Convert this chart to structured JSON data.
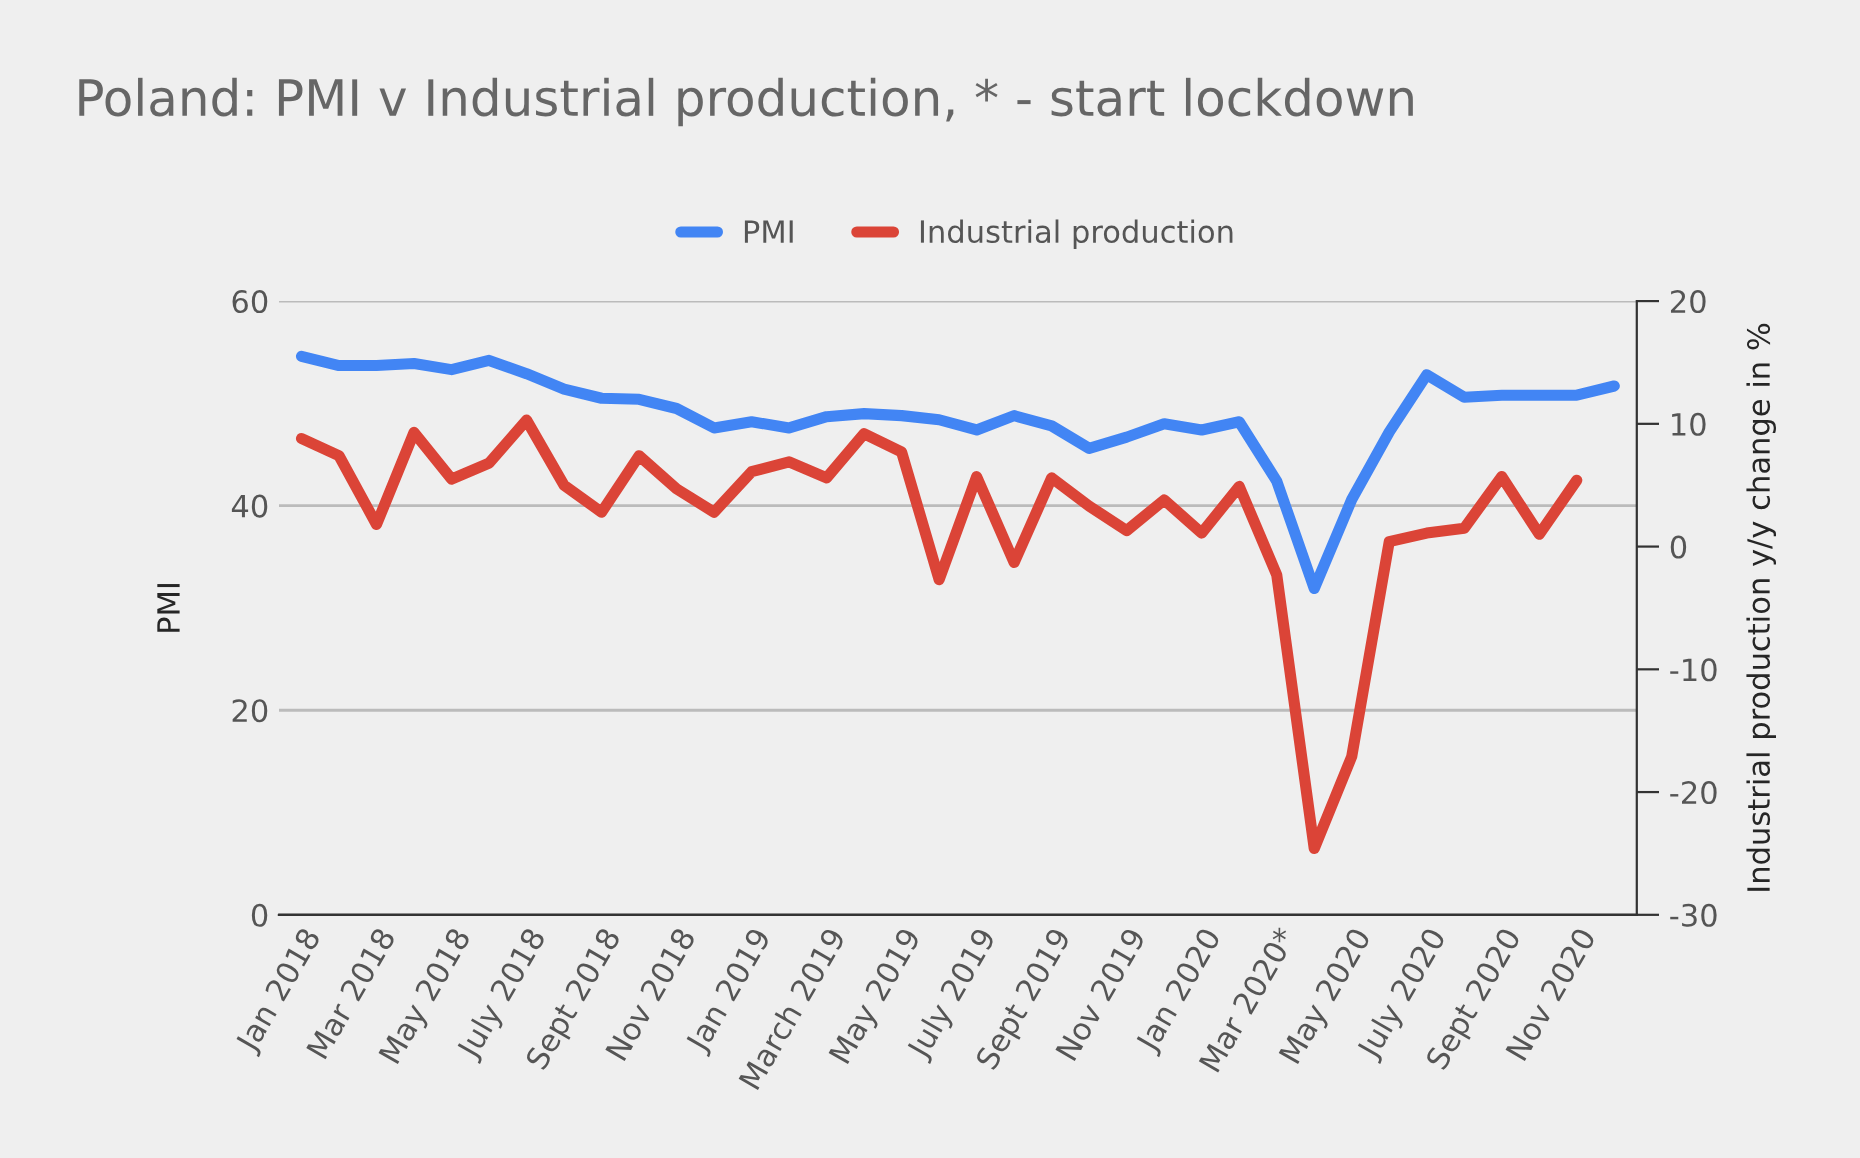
{
  "chart_data": {
    "type": "line",
    "title": "Poland: PMI v Industrial production, * - start lockdown",
    "ylabel": "PMI",
    "y2label": "Industrial production y/y change in %",
    "categories": [
      "Jan 2018",
      null,
      "Mar 2018",
      null,
      "May 2018",
      null,
      "July 2018",
      null,
      "Sept 2018",
      null,
      "Nov 2018",
      null,
      "Jan 2019",
      null,
      "March 2019",
      null,
      "May 2019",
      null,
      "July 2019",
      null,
      "Sept 2019",
      null,
      "Nov 2019",
      null,
      "Jan 2020",
      null,
      "Mar 2020*",
      null,
      "May 2020",
      null,
      "July 2020",
      null,
      "Sept 2020",
      null,
      "Nov 2020",
      null
    ],
    "series": [
      {
        "name": "PMI",
        "color": "#4285f4",
        "values": [
          54.6,
          53.7,
          53.7,
          53.9,
          53.3,
          54.2,
          52.9,
          51.4,
          50.5,
          50.4,
          49.5,
          47.6,
          48.2,
          47.6,
          48.7,
          49.0,
          48.8,
          48.4,
          47.4,
          48.8,
          47.8,
          45.6,
          46.7,
          48.0,
          47.4,
          48.2,
          42.4,
          31.9,
          40.6,
          47.2,
          52.8,
          50.6,
          50.8,
          50.8,
          50.8,
          51.7
        ]
      },
      {
        "name": "Industrial production",
        "color": "#db4437",
        "axis": "y2",
        "values": [
          8.8,
          7.4,
          1.8,
          9.3,
          5.5,
          6.8,
          10.3,
          5.0,
          2.8,
          7.4,
          4.7,
          2.8,
          6.1,
          6.9,
          5.6,
          9.2,
          7.7,
          -2.7,
          5.7,
          -1.3,
          5.6,
          3.3,
          1.3,
          3.8,
          1.1,
          4.9,
          -2.3,
          -24.6,
          -17.1,
          0.4,
          1.1,
          1.5,
          5.7,
          1.0,
          5.4,
          null
        ]
      }
    ],
    "ylim": [
      0,
      60
    ],
    "yticks": [
      0,
      20,
      40,
      60
    ],
    "y2lim": [
      -30,
      20
    ],
    "y2ticks": [
      -30,
      -20,
      -10,
      0,
      10,
      20
    ],
    "grid": "y",
    "legend": "top",
    "line_style": "solid",
    "marker": "none"
  }
}
